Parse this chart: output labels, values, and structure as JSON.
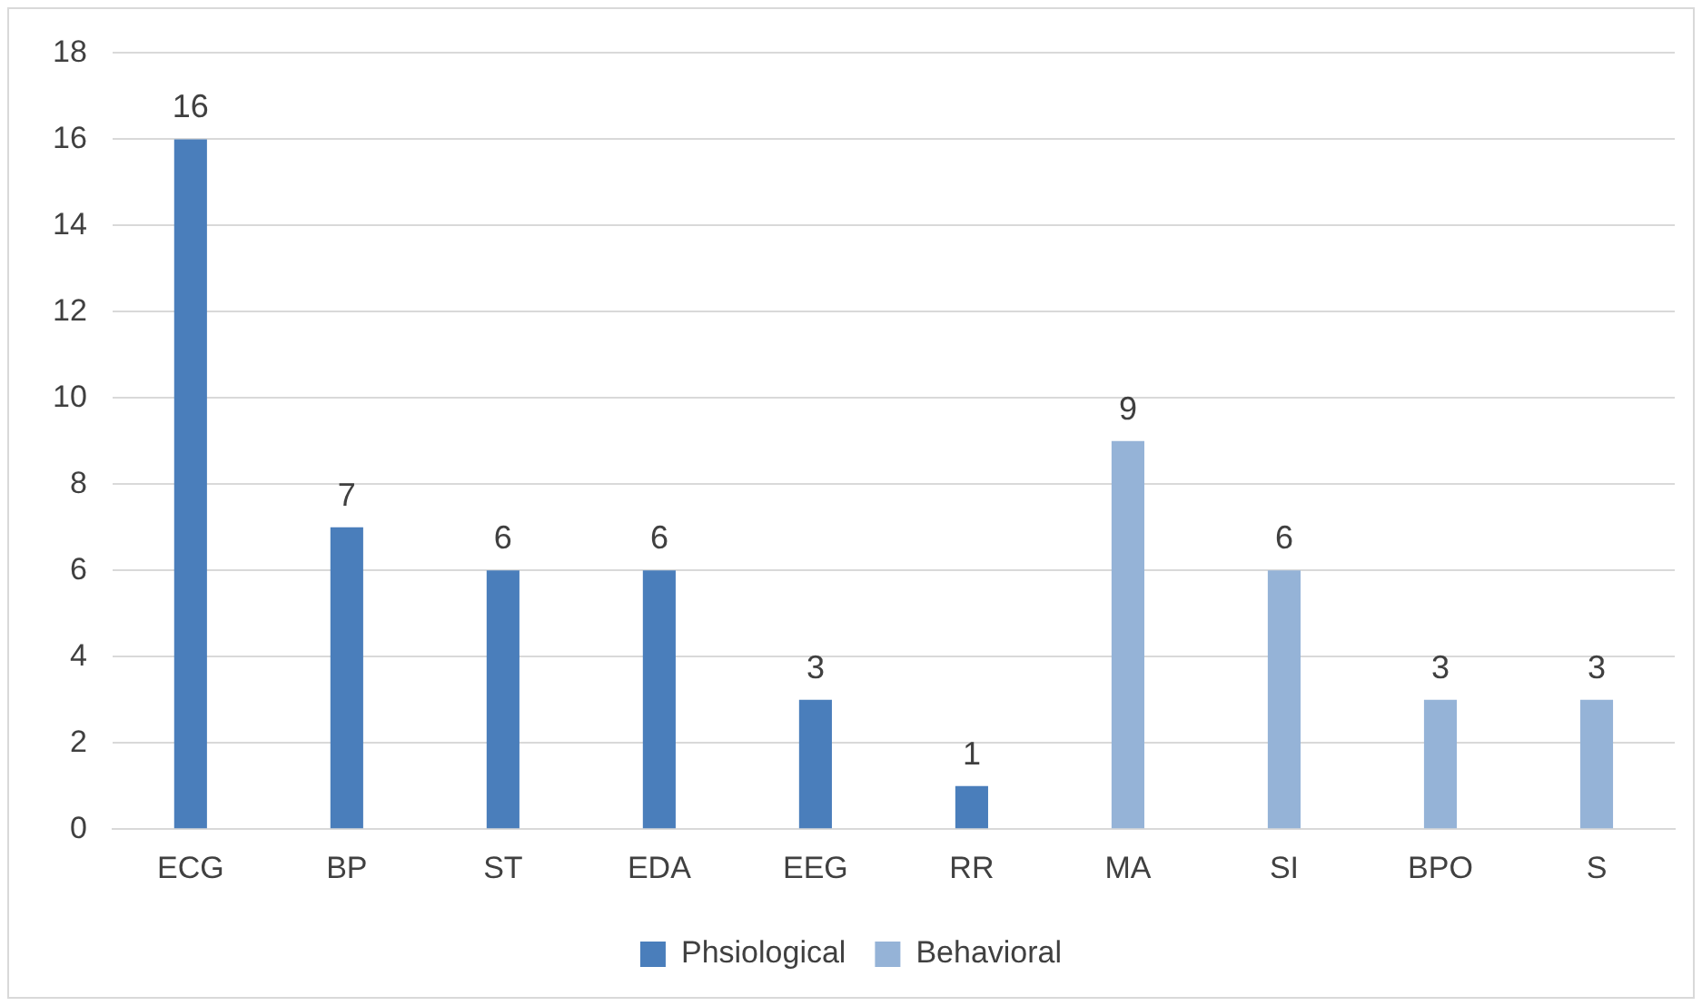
{
  "chart_data": {
    "type": "bar",
    "categories": [
      "ECG",
      "BP",
      "ST",
      "EDA",
      "EEG",
      "RR",
      "MA",
      "SI",
      "BPO",
      "S"
    ],
    "series": [
      {
        "name": "Phsiological",
        "color": "#4a7ebb",
        "values": [
          16,
          7,
          6,
          6,
          3,
          1,
          null,
          null,
          null,
          null
        ]
      },
      {
        "name": "Behavioral",
        "color": "#95b3d7",
        "values": [
          null,
          null,
          null,
          null,
          null,
          null,
          9,
          6,
          3,
          3
        ]
      }
    ],
    "ylim": [
      0,
      18
    ],
    "yticks": [
      0,
      2,
      4,
      6,
      8,
      10,
      12,
      14,
      16,
      18
    ],
    "grid": "y",
    "legend": "bottom",
    "data_labels": true
  }
}
